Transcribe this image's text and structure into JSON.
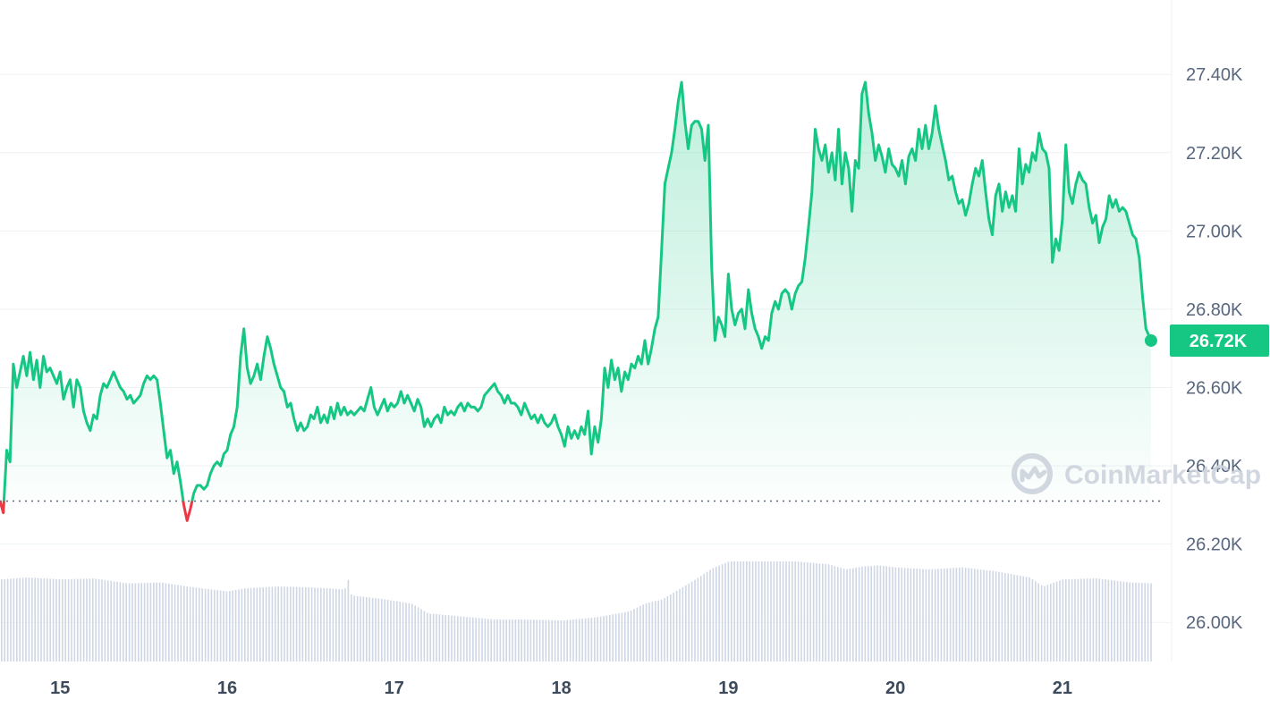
{
  "chart_data": {
    "type": "area",
    "y_ticks": [
      {
        "value": 26000,
        "label": "26.00K"
      },
      {
        "value": 26200,
        "label": "26.20K"
      },
      {
        "value": 26400,
        "label": "26.40K"
      },
      {
        "value": 26600,
        "label": "26.60K"
      },
      {
        "value": 26800,
        "label": "26.80K"
      },
      {
        "value": 27000,
        "label": "27.00K"
      },
      {
        "value": 27200,
        "label": "27.20K"
      },
      {
        "value": 27400,
        "label": "27.40K"
      }
    ],
    "x_ticks": [
      {
        "value": 15,
        "label": "15"
      },
      {
        "value": 16,
        "label": "16"
      },
      {
        "value": 17,
        "label": "17"
      },
      {
        "value": 18,
        "label": "18"
      },
      {
        "value": 19,
        "label": "19"
      },
      {
        "value": 20,
        "label": "20"
      },
      {
        "value": 21,
        "label": "21"
      }
    ],
    "xlim": [
      14.64,
      21.6
    ],
    "ylim": [
      25.9,
      27.59
    ],
    "baseline_price": 26.31,
    "current_price": 26.72,
    "current_price_label": "26.72K",
    "colors": {
      "up": "#16c784",
      "down": "#ea3943",
      "grid": "#eff2f5",
      "volume": "#cfd6e4"
    },
    "price": [
      [
        14.64,
        26.31
      ],
      [
        14.66,
        26.28
      ],
      [
        14.68,
        26.44
      ],
      [
        14.7,
        26.41
      ],
      [
        14.72,
        26.66
      ],
      [
        14.74,
        26.6
      ],
      [
        14.76,
        26.64
      ],
      [
        14.78,
        26.68
      ],
      [
        14.8,
        26.63
      ],
      [
        14.82,
        26.69
      ],
      [
        14.84,
        26.62
      ],
      [
        14.86,
        26.67
      ],
      [
        14.88,
        26.6
      ],
      [
        14.9,
        26.68
      ],
      [
        14.92,
        26.64
      ],
      [
        14.94,
        26.65
      ],
      [
        14.96,
        26.63
      ],
      [
        14.98,
        26.61
      ],
      [
        15.0,
        26.64
      ],
      [
        15.02,
        26.57
      ],
      [
        15.04,
        26.6
      ],
      [
        15.06,
        26.62
      ],
      [
        15.08,
        26.55
      ],
      [
        15.1,
        26.62
      ],
      [
        15.12,
        26.6
      ],
      [
        15.14,
        26.54
      ],
      [
        15.16,
        26.51
      ],
      [
        15.18,
        26.49
      ],
      [
        15.2,
        26.53
      ],
      [
        15.22,
        26.52
      ],
      [
        15.24,
        26.58
      ],
      [
        15.26,
        26.61
      ],
      [
        15.28,
        26.6
      ],
      [
        15.3,
        26.62
      ],
      [
        15.32,
        26.64
      ],
      [
        15.34,
        26.62
      ],
      [
        15.36,
        26.6
      ],
      [
        15.38,
        26.59
      ],
      [
        15.4,
        26.57
      ],
      [
        15.42,
        26.58
      ],
      [
        15.44,
        26.56
      ],
      [
        15.46,
        26.57
      ],
      [
        15.48,
        26.58
      ],
      [
        15.5,
        26.61
      ],
      [
        15.52,
        26.63
      ],
      [
        15.54,
        26.62
      ],
      [
        15.56,
        26.63
      ],
      [
        15.58,
        26.62
      ],
      [
        15.6,
        26.56
      ],
      [
        15.62,
        26.49
      ],
      [
        15.64,
        26.42
      ],
      [
        15.66,
        26.44
      ],
      [
        15.68,
        26.38
      ],
      [
        15.7,
        26.41
      ],
      [
        15.72,
        26.36
      ],
      [
        15.74,
        26.3
      ],
      [
        15.76,
        26.26
      ],
      [
        15.78,
        26.29
      ],
      [
        15.8,
        26.33
      ],
      [
        15.82,
        26.35
      ],
      [
        15.84,
        26.35
      ],
      [
        15.86,
        26.34
      ],
      [
        15.88,
        26.35
      ],
      [
        15.9,
        26.38
      ],
      [
        15.92,
        26.4
      ],
      [
        15.94,
        26.41
      ],
      [
        15.96,
        26.4
      ],
      [
        15.98,
        26.43
      ],
      [
        16.0,
        26.44
      ],
      [
        16.02,
        26.48
      ],
      [
        16.04,
        26.5
      ],
      [
        16.06,
        26.55
      ],
      [
        16.08,
        26.68
      ],
      [
        16.1,
        26.75
      ],
      [
        16.12,
        26.65
      ],
      [
        16.14,
        26.61
      ],
      [
        16.16,
        26.63
      ],
      [
        16.18,
        26.66
      ],
      [
        16.2,
        26.62
      ],
      [
        16.22,
        26.68
      ],
      [
        16.24,
        26.73
      ],
      [
        16.26,
        26.7
      ],
      [
        16.28,
        26.66
      ],
      [
        16.3,
        26.63
      ],
      [
        16.32,
        26.6
      ],
      [
        16.34,
        26.59
      ],
      [
        16.36,
        26.55
      ],
      [
        16.38,
        26.56
      ],
      [
        16.4,
        26.52
      ],
      [
        16.42,
        26.49
      ],
      [
        16.44,
        26.51
      ],
      [
        16.46,
        26.49
      ],
      [
        16.48,
        26.5
      ],
      [
        16.5,
        26.53
      ],
      [
        16.52,
        26.52
      ],
      [
        16.54,
        26.55
      ],
      [
        16.56,
        26.51
      ],
      [
        16.58,
        26.53
      ],
      [
        16.6,
        26.51
      ],
      [
        16.62,
        26.55
      ],
      [
        16.64,
        26.52
      ],
      [
        16.66,
        26.56
      ],
      [
        16.68,
        26.53
      ],
      [
        16.7,
        26.55
      ],
      [
        16.72,
        26.53
      ],
      [
        16.74,
        26.54
      ],
      [
        16.76,
        26.53
      ],
      [
        16.78,
        26.54
      ],
      [
        16.8,
        26.55
      ],
      [
        16.82,
        26.54
      ],
      [
        16.84,
        26.57
      ],
      [
        16.86,
        26.6
      ],
      [
        16.88,
        26.55
      ],
      [
        16.9,
        26.53
      ],
      [
        16.92,
        26.55
      ],
      [
        16.94,
        26.57
      ],
      [
        16.96,
        26.54
      ],
      [
        16.98,
        26.56
      ],
      [
        17.0,
        26.55
      ],
      [
        17.02,
        26.56
      ],
      [
        17.04,
        26.59
      ],
      [
        17.06,
        26.56
      ],
      [
        17.08,
        26.58
      ],
      [
        17.1,
        26.56
      ],
      [
        17.12,
        26.54
      ],
      [
        17.14,
        26.57
      ],
      [
        17.16,
        26.55
      ],
      [
        17.18,
        26.5
      ],
      [
        17.2,
        26.52
      ],
      [
        17.22,
        26.5
      ],
      [
        17.24,
        26.52
      ],
      [
        17.26,
        26.53
      ],
      [
        17.28,
        26.51
      ],
      [
        17.3,
        26.55
      ],
      [
        17.32,
        26.53
      ],
      [
        17.34,
        26.54
      ],
      [
        17.36,
        26.53
      ],
      [
        17.38,
        26.55
      ],
      [
        17.4,
        26.56
      ],
      [
        17.42,
        26.54
      ],
      [
        17.44,
        26.56
      ],
      [
        17.46,
        26.55
      ],
      [
        17.48,
        26.55
      ],
      [
        17.5,
        26.54
      ],
      [
        17.52,
        26.55
      ],
      [
        17.54,
        26.58
      ],
      [
        17.56,
        26.59
      ],
      [
        17.58,
        26.6
      ],
      [
        17.6,
        26.61
      ],
      [
        17.62,
        26.59
      ],
      [
        17.64,
        26.58
      ],
      [
        17.66,
        26.56
      ],
      [
        17.68,
        26.58
      ],
      [
        17.7,
        26.56
      ],
      [
        17.72,
        26.56
      ],
      [
        17.74,
        26.55
      ],
      [
        17.76,
        26.53
      ],
      [
        17.78,
        26.56
      ],
      [
        17.8,
        26.54
      ],
      [
        17.82,
        26.52
      ],
      [
        17.84,
        26.53
      ],
      [
        17.86,
        26.51
      ],
      [
        17.88,
        26.53
      ],
      [
        17.9,
        26.51
      ],
      [
        17.92,
        26.5
      ],
      [
        17.94,
        26.51
      ],
      [
        17.96,
        26.53
      ],
      [
        17.98,
        26.5
      ],
      [
        18.0,
        26.48
      ],
      [
        18.02,
        26.45
      ],
      [
        18.04,
        26.5
      ],
      [
        18.06,
        26.47
      ],
      [
        18.08,
        26.49
      ],
      [
        18.1,
        26.47
      ],
      [
        18.12,
        26.5
      ],
      [
        18.14,
        26.48
      ],
      [
        18.16,
        26.54
      ],
      [
        18.18,
        26.43
      ],
      [
        18.2,
        26.5
      ],
      [
        18.22,
        26.46
      ],
      [
        18.24,
        26.52
      ],
      [
        18.26,
        26.65
      ],
      [
        18.28,
        26.6
      ],
      [
        18.3,
        26.67
      ],
      [
        18.32,
        26.62
      ],
      [
        18.34,
        26.65
      ],
      [
        18.36,
        26.59
      ],
      [
        18.38,
        26.64
      ],
      [
        18.4,
        26.62
      ],
      [
        18.42,
        26.66
      ],
      [
        18.44,
        26.65
      ],
      [
        18.46,
        26.68
      ],
      [
        18.48,
        26.66
      ],
      [
        18.5,
        26.72
      ],
      [
        18.52,
        26.66
      ],
      [
        18.54,
        26.7
      ],
      [
        18.56,
        26.75
      ],
      [
        18.58,
        26.78
      ],
      [
        18.6,
        26.95
      ],
      [
        18.62,
        27.12
      ],
      [
        18.64,
        27.16
      ],
      [
        18.66,
        27.2
      ],
      [
        18.68,
        27.26
      ],
      [
        18.7,
        27.33
      ],
      [
        18.72,
        27.38
      ],
      [
        18.74,
        27.28
      ],
      [
        18.76,
        27.21
      ],
      [
        18.78,
        27.27
      ],
      [
        18.8,
        27.28
      ],
      [
        18.82,
        27.28
      ],
      [
        18.84,
        27.26
      ],
      [
        18.86,
        27.18
      ],
      [
        18.88,
        27.27
      ],
      [
        18.9,
        26.91
      ],
      [
        18.92,
        26.72
      ],
      [
        18.94,
        26.78
      ],
      [
        18.96,
        26.76
      ],
      [
        18.98,
        26.73
      ],
      [
        19.0,
        26.89
      ],
      [
        19.02,
        26.8
      ],
      [
        19.04,
        26.76
      ],
      [
        19.06,
        26.79
      ],
      [
        19.08,
        26.8
      ],
      [
        19.1,
        26.75
      ],
      [
        19.12,
        26.85
      ],
      [
        19.14,
        26.79
      ],
      [
        19.16,
        26.75
      ],
      [
        19.18,
        26.73
      ],
      [
        19.2,
        26.7
      ],
      [
        19.22,
        26.73
      ],
      [
        19.24,
        26.72
      ],
      [
        19.26,
        26.79
      ],
      [
        19.28,
        26.82
      ],
      [
        19.3,
        26.8
      ],
      [
        19.32,
        26.84
      ],
      [
        19.34,
        26.85
      ],
      [
        19.36,
        26.84
      ],
      [
        19.38,
        26.8
      ],
      [
        19.4,
        26.84
      ],
      [
        19.42,
        26.86
      ],
      [
        19.44,
        26.87
      ],
      [
        19.46,
        26.93
      ],
      [
        19.48,
        27.01
      ],
      [
        19.5,
        27.1
      ],
      [
        19.52,
        27.26
      ],
      [
        19.54,
        27.21
      ],
      [
        19.56,
        27.18
      ],
      [
        19.58,
        27.22
      ],
      [
        19.6,
        27.15
      ],
      [
        19.62,
        27.2
      ],
      [
        19.64,
        27.13
      ],
      [
        19.66,
        27.26
      ],
      [
        19.68,
        27.12
      ],
      [
        19.7,
        27.2
      ],
      [
        19.72,
        27.16
      ],
      [
        19.74,
        27.05
      ],
      [
        19.76,
        27.18
      ],
      [
        19.78,
        27.16
      ],
      [
        19.8,
        27.35
      ],
      [
        19.82,
        27.38
      ],
      [
        19.84,
        27.3
      ],
      [
        19.86,
        27.25
      ],
      [
        19.88,
        27.18
      ],
      [
        19.9,
        27.22
      ],
      [
        19.92,
        27.19
      ],
      [
        19.94,
        27.15
      ],
      [
        19.96,
        27.21
      ],
      [
        19.98,
        27.17
      ],
      [
        20.0,
        27.16
      ],
      [
        20.02,
        27.14
      ],
      [
        20.04,
        27.18
      ],
      [
        20.06,
        27.12
      ],
      [
        20.08,
        27.19
      ],
      [
        20.1,
        27.21
      ],
      [
        20.12,
        27.18
      ],
      [
        20.14,
        27.26
      ],
      [
        20.16,
        27.21
      ],
      [
        20.18,
        27.27
      ],
      [
        20.2,
        27.21
      ],
      [
        20.22,
        27.25
      ],
      [
        20.24,
        27.32
      ],
      [
        20.26,
        27.26
      ],
      [
        20.28,
        27.22
      ],
      [
        20.3,
        27.18
      ],
      [
        20.32,
        27.13
      ],
      [
        20.34,
        27.14
      ],
      [
        20.36,
        27.1
      ],
      [
        20.38,
        27.07
      ],
      [
        20.4,
        27.08
      ],
      [
        20.42,
        27.04
      ],
      [
        20.44,
        27.07
      ],
      [
        20.46,
        27.12
      ],
      [
        20.48,
        27.16
      ],
      [
        20.5,
        27.14
      ],
      [
        20.52,
        27.18
      ],
      [
        20.54,
        27.1
      ],
      [
        20.56,
        27.03
      ],
      [
        20.58,
        26.99
      ],
      [
        20.6,
        27.09
      ],
      [
        20.62,
        27.12
      ],
      [
        20.64,
        27.05
      ],
      [
        20.66,
        27.1
      ],
      [
        20.68,
        27.06
      ],
      [
        20.7,
        27.09
      ],
      [
        20.72,
        27.05
      ],
      [
        20.74,
        27.21
      ],
      [
        20.76,
        27.12
      ],
      [
        20.78,
        27.17
      ],
      [
        20.8,
        27.15
      ],
      [
        20.82,
        27.2
      ],
      [
        20.84,
        27.18
      ],
      [
        20.86,
        27.25
      ],
      [
        20.88,
        27.21
      ],
      [
        20.9,
        27.2
      ],
      [
        20.92,
        27.16
      ],
      [
        20.94,
        26.92
      ],
      [
        20.96,
        26.98
      ],
      [
        20.98,
        26.95
      ],
      [
        21.0,
        27.03
      ],
      [
        21.02,
        27.22
      ],
      [
        21.04,
        27.1
      ],
      [
        21.06,
        27.07
      ],
      [
        21.08,
        27.12
      ],
      [
        21.1,
        27.15
      ],
      [
        21.12,
        27.13
      ],
      [
        21.14,
        27.12
      ],
      [
        21.16,
        27.06
      ],
      [
        21.18,
        27.02
      ],
      [
        21.2,
        27.04
      ],
      [
        21.22,
        26.97
      ],
      [
        21.24,
        27.01
      ],
      [
        21.26,
        27.03
      ],
      [
        21.28,
        27.09
      ],
      [
        21.3,
        27.06
      ],
      [
        21.32,
        27.08
      ],
      [
        21.34,
        27.05
      ],
      [
        21.36,
        27.06
      ],
      [
        21.38,
        27.05
      ],
      [
        21.4,
        27.02
      ],
      [
        21.42,
        26.99
      ],
      [
        21.44,
        26.98
      ],
      [
        21.46,
        26.93
      ],
      [
        21.48,
        26.83
      ],
      [
        21.5,
        26.75
      ],
      [
        21.52,
        26.73
      ],
      [
        21.53,
        26.72
      ]
    ],
    "volume": [
      [
        14.64,
        0.82
      ],
      [
        14.8,
        0.84
      ],
      [
        15.0,
        0.82
      ],
      [
        15.2,
        0.83
      ],
      [
        15.4,
        0.78
      ],
      [
        15.6,
        0.79
      ],
      [
        15.8,
        0.74
      ],
      [
        16.0,
        0.7
      ],
      [
        16.1,
        0.73
      ],
      [
        16.3,
        0.75
      ],
      [
        16.5,
        0.74
      ],
      [
        16.7,
        0.72
      ],
      [
        16.72,
        0.82
      ],
      [
        16.74,
        0.66
      ],
      [
        16.9,
        0.63
      ],
      [
        17.1,
        0.58
      ],
      [
        17.2,
        0.48
      ],
      [
        17.4,
        0.45
      ],
      [
        17.6,
        0.42
      ],
      [
        17.8,
        0.42
      ],
      [
        18.0,
        0.41
      ],
      [
        18.2,
        0.44
      ],
      [
        18.4,
        0.5
      ],
      [
        18.5,
        0.58
      ],
      [
        18.6,
        0.62
      ],
      [
        18.7,
        0.72
      ],
      [
        18.8,
        0.82
      ],
      [
        18.9,
        0.93
      ],
      [
        19.0,
        1.0
      ],
      [
        19.2,
        1.0
      ],
      [
        19.4,
        1.0
      ],
      [
        19.6,
        0.97
      ],
      [
        19.7,
        0.92
      ],
      [
        19.8,
        0.95
      ],
      [
        19.9,
        0.96
      ],
      [
        20.0,
        0.94
      ],
      [
        20.2,
        0.92
      ],
      [
        20.4,
        0.94
      ],
      [
        20.6,
        0.9
      ],
      [
        20.8,
        0.84
      ],
      [
        20.88,
        0.75
      ],
      [
        21.0,
        0.82
      ],
      [
        21.2,
        0.83
      ],
      [
        21.4,
        0.79
      ],
      [
        21.53,
        0.78
      ]
    ]
  },
  "watermark": {
    "icon": "coinmarketcap-logo-icon",
    "text": "CoinMarketCap"
  }
}
